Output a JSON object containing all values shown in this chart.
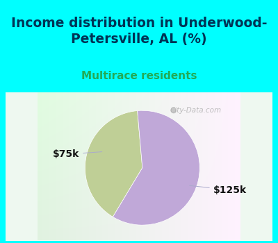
{
  "title": "Income distribution in Underwood-\nPetersville, AL (%)",
  "subtitle": "Multirace residents",
  "slices": [
    0.4,
    0.6
  ],
  "labels": [
    "$75k",
    "$125k"
  ],
  "colors": [
    "#bfcf96",
    "#c0a8d8"
  ],
  "background_fig": "#00ffff",
  "background_chart": "#d8f0dc",
  "title_fontsize": 13.5,
  "subtitle_fontsize": 11,
  "subtitle_color": "#22aa55",
  "title_color": "#003355",
  "startangle": 95,
  "watermark": "City-Data.com",
  "label_fontsize": 10
}
